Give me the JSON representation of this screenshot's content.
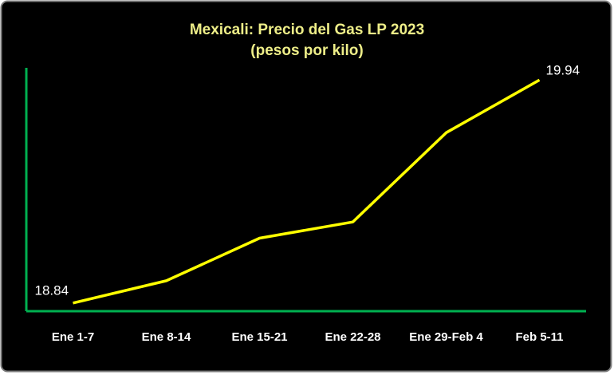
{
  "chart_data": {
    "type": "line",
    "title": "Mexicali: Precio del Gas LP 2023",
    "subtitle": "(pesos por kilo)",
    "categories": [
      "Ene 1-7",
      "Ene 8-14",
      "Ene 15-21",
      "Ene 22-28",
      "Ene 29-Feb 4",
      "Feb 5-11"
    ],
    "values": [
      18.84,
      18.95,
      19.16,
      19.24,
      19.68,
      19.94
    ],
    "value_labels": [
      "18.84",
      null,
      null,
      null,
      null,
      "19.94"
    ],
    "color": "#ffff00",
    "axis_color": "#00b050",
    "ylim": [
      18.8,
      20.0
    ]
  }
}
